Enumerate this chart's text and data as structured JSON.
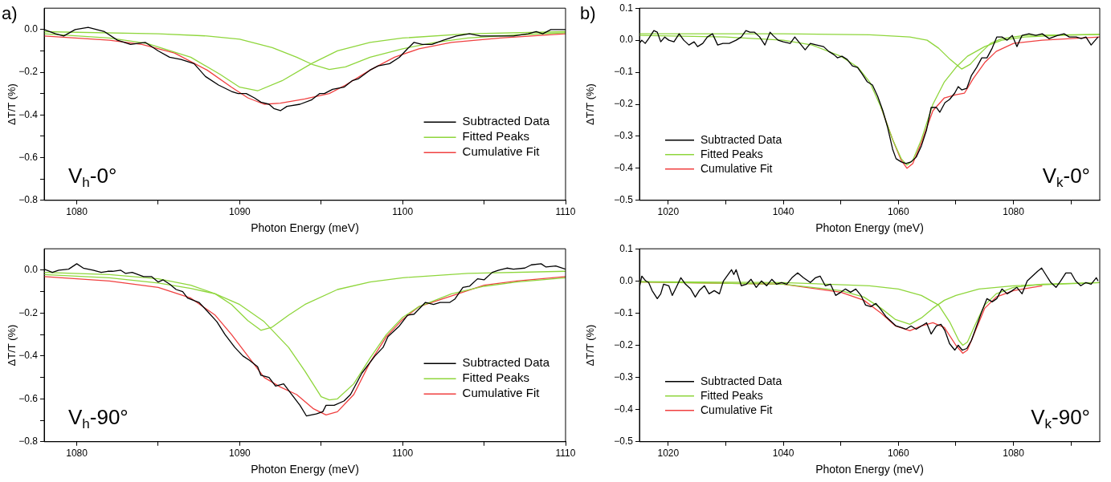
{
  "chart_data": [
    {
      "type": "line",
      "title": "a)",
      "xlabel": "Photon Energy (meV)",
      "ylabel": "ΔT/T (%)",
      "annotations": [
        "V$_{h}$-0°"
      ],
      "legend": "bottom right",
      "grid": false,
      "marker": "none",
      "line_style": "solid",
      "xlim": [
        1078,
        1110
      ],
      "xticks": [
        1080,
        {
          "value": 1085,
          "label": null
        },
        1090,
        {
          "value": 1095,
          "label": null
        },
        1100,
        {
          "value": 1105,
          "label": null
        },
        1110
      ],
      "ylim": [
        -0.8,
        0.1
      ],
      "yticks": [
        {
          "value": 0,
          "label": "0.0"
        },
        {
          "value": -0.1,
          "label": null
        },
        {
          "value": -0.2,
          "label": "−0.2"
        },
        {
          "value": -0.3,
          "label": null
        },
        {
          "value": -0.4,
          "label": "−0.4"
        },
        {
          "value": -0.5,
          "label": null
        },
        {
          "value": -0.6,
          "label": "−0.6"
        },
        {
          "value": -0.7,
          "label": null
        },
        {
          "value": -0.8,
          "label": "−0.8"
        }
      ],
      "series": [
        {
          "name": "Subtracted Data",
          "color": "#000000",
          "x": [
            1078.0,
            1078.7,
            1079.2,
            1079.9,
            1080.7,
            1081.7,
            1082.5,
            1083.3,
            1084.2,
            1085.0,
            1085.7,
            1086.4,
            1087.2,
            1087.9,
            1088.7,
            1089.5,
            1089.9,
            1090.4,
            1090.9,
            1091.3,
            1091.8,
            1092.1,
            1092.5,
            1092.9,
            1093.7,
            1094.4,
            1094.9,
            1095.2,
            1095.7,
            1096.4,
            1096.9,
            1097.3,
            1098.0,
            1098.5,
            1099.2,
            1099.8,
            1100.3,
            1100.7,
            1101.2,
            1101.8,
            1102.5,
            1103.3,
            1104.1,
            1104.8,
            1105.6,
            1106.4,
            1106.8,
            1107.7,
            1108.2,
            1108.6,
            1109.1,
            1110.0
          ],
          "values": [
            0.0,
            -0.02,
            -0.03,
            0.0,
            0.01,
            -0.01,
            -0.05,
            -0.07,
            -0.06,
            -0.1,
            -0.13,
            -0.14,
            -0.16,
            -0.22,
            -0.26,
            -0.29,
            -0.3,
            -0.3,
            -0.32,
            -0.34,
            -0.35,
            -0.37,
            -0.38,
            -0.36,
            -0.35,
            -0.33,
            -0.3,
            -0.3,
            -0.28,
            -0.27,
            -0.24,
            -0.23,
            -0.19,
            -0.17,
            -0.16,
            -0.13,
            -0.09,
            -0.06,
            -0.07,
            -0.07,
            -0.05,
            -0.03,
            -0.02,
            -0.03,
            -0.03,
            -0.03,
            -0.03,
            -0.02,
            -0.01,
            -0.02,
            0.0,
            0.0
          ]
        },
        {
          "name": "Fitted Peaks",
          "color": "#8fd63c",
          "x": [
            1078,
            1082,
            1084.3,
            1087,
            1088.8,
            1090,
            1091.1,
            1092.6,
            1094.4,
            1096,
            1098,
            1100,
            1104,
            1110
          ],
          "values": [
            -0.02,
            -0.04,
            -0.065,
            -0.13,
            -0.21,
            -0.27,
            -0.287,
            -0.24,
            -0.16,
            -0.1,
            -0.06,
            -0.04,
            -0.02,
            -0.01
          ]
        },
        {
          "color": "#8fd63c",
          "x": [
            1078,
            1085,
            1088,
            1090,
            1092,
            1093.5,
            1094.5,
            1095.5,
            1096.5,
            1098,
            1100,
            1102,
            1104,
            1107,
            1110
          ],
          "values": [
            -0.01,
            -0.02,
            -0.03,
            -0.045,
            -0.085,
            -0.13,
            -0.165,
            -0.187,
            -0.175,
            -0.13,
            -0.09,
            -0.06,
            -0.04,
            -0.025,
            -0.015
          ]
        },
        {
          "name": "Cumulative Fit",
          "color": "#f04040",
          "x": [
            1078,
            1082,
            1084,
            1086,
            1088,
            1089.5,
            1090.5,
            1091.5,
            1092.5,
            1094,
            1095.5,
            1096.5,
            1098,
            1099.5,
            1101,
            1103,
            1106,
            1110
          ],
          "values": [
            -0.03,
            -0.05,
            -0.07,
            -0.11,
            -0.19,
            -0.27,
            -0.32,
            -0.35,
            -0.345,
            -0.325,
            -0.3,
            -0.26,
            -0.19,
            -0.13,
            -0.09,
            -0.06,
            -0.04,
            -0.02
          ]
        }
      ]
    },
    {
      "type": "line",
      "title": "b)",
      "xlabel": "Photon Energy (meV)",
      "ylabel": "ΔT/T (%)",
      "annotations": [
        "V$_{k}$-0°"
      ],
      "legend": "bottom left",
      "grid": false,
      "marker": "none",
      "line_style": "solid",
      "xlim": [
        1015,
        1095
      ],
      "xticks": [
        1020,
        {
          "value": 1030,
          "label": null
        },
        1040,
        {
          "value": 1050,
          "label": null
        },
        1060,
        {
          "value": 1070,
          "label": null
        },
        1080,
        {
          "value": 1090,
          "label": null
        }
      ],
      "ylim": [
        -0.5,
        0.1
      ],
      "yticks": [
        0.1,
        {
          "value": 0,
          "label": "0.0"
        },
        {
          "value": -0.1,
          "label": "−0.1"
        },
        {
          "value": -0.2,
          "label": "−0.2"
        },
        {
          "value": -0.3,
          "label": "−0.3"
        },
        {
          "value": -0.4,
          "label": "−0.4"
        },
        {
          "value": -0.5,
          "label": "−0.5"
        }
      ],
      "series": [
        {
          "name": "Subtracted Data",
          "color": "#000000",
          "x": [
            1015.0,
            1015.4,
            1016.0,
            1016.6,
            1017.5,
            1018.1,
            1018.7,
            1019.4,
            1020.1,
            1021.0,
            1021.9,
            1022.7,
            1023.6,
            1024.5,
            1025.1,
            1026.0,
            1026.8,
            1027.7,
            1028.6,
            1029.5,
            1030.6,
            1031.8,
            1032.7,
            1033.5,
            1034.2,
            1035.0,
            1035.9,
            1036.8,
            1037.7,
            1038.2,
            1039.1,
            1040.0,
            1041.2,
            1042.0,
            1042.9,
            1043.8,
            1044.7,
            1045.8,
            1047.0,
            1047.9,
            1048.8,
            1049.4,
            1050.2,
            1051.1,
            1052.0,
            1052.9,
            1053.7,
            1054.6,
            1055.5,
            1056.4,
            1057.3,
            1058.1,
            1059.0,
            1059.6,
            1060.5,
            1061.3,
            1062.2,
            1063.1,
            1064.0,
            1064.9,
            1065.7,
            1066.6,
            1067.2,
            1068.1,
            1068.9,
            1069.8,
            1070.4,
            1071.0,
            1071.9,
            1072.7,
            1073.6,
            1074.5,
            1075.4,
            1076.3,
            1077.1,
            1078.0,
            1078.9,
            1079.8,
            1080.6,
            1081.5,
            1082.7,
            1083.9,
            1085.0,
            1086.2,
            1087.7,
            1088.8,
            1089.7,
            1090.9,
            1091.8,
            1092.6,
            1093.5,
            1094.7
          ],
          "values": [
            -0.01,
            0.0,
            -0.01,
            0.005,
            0.03,
            0.025,
            -0.005,
            0.01,
            0.0,
            -0.005,
            0.02,
            0.0,
            -0.015,
            -0.005,
            -0.02,
            -0.01,
            0.01,
            0.02,
            -0.015,
            -0.01,
            -0.01,
            0.0,
            0.01,
            0.03,
            0.025,
            0.025,
            0.01,
            -0.015,
            0.025,
            0.015,
            0.0,
            -0.005,
            -0.01,
            0.01,
            -0.01,
            -0.03,
            -0.01,
            -0.015,
            -0.02,
            -0.035,
            -0.045,
            -0.055,
            -0.05,
            -0.06,
            -0.08,
            -0.085,
            -0.105,
            -0.13,
            -0.14,
            -0.175,
            -0.22,
            -0.27,
            -0.34,
            -0.37,
            -0.38,
            -0.385,
            -0.38,
            -0.365,
            -0.33,
            -0.28,
            -0.21,
            -0.21,
            -0.225,
            -0.195,
            -0.185,
            -0.165,
            -0.145,
            -0.155,
            -0.15,
            -0.11,
            -0.085,
            -0.055,
            -0.055,
            -0.025,
            0.01,
            0.01,
            0.0,
            0.015,
            -0.02,
            0.015,
            0.02,
            0.015,
            0.02,
            0.005,
            0.015,
            0.02,
            0.01,
            0.01,
            0.005,
            0.01,
            -0.015,
            0.01
          ]
        },
        {
          "name": "Fitted Peaks",
          "color": "#8fd63c",
          "x": [
            1015,
            1030,
            1040,
            1045,
            1050,
            1053,
            1055,
            1057,
            1059,
            1060.5,
            1061.5,
            1062.5,
            1064,
            1066,
            1068,
            1070,
            1072,
            1075,
            1078,
            1082,
            1088,
            1095
          ],
          "values": [
            0.015,
            0.01,
            0.0,
            -0.015,
            -0.05,
            -0.085,
            -0.13,
            -0.21,
            -0.31,
            -0.37,
            -0.39,
            -0.375,
            -0.31,
            -0.2,
            -0.13,
            -0.085,
            -0.05,
            -0.02,
            0.0,
            0.01,
            0.015,
            0.018
          ]
        },
        {
          "color": "#8fd63c",
          "x": [
            1015,
            1040,
            1055,
            1062,
            1065,
            1067,
            1069,
            1071,
            1072.5,
            1074,
            1076,
            1078,
            1082,
            1095
          ],
          "values": [
            0.02,
            0.02,
            0.017,
            0.01,
            0.0,
            -0.025,
            -0.06,
            -0.09,
            -0.075,
            -0.045,
            -0.01,
            0.005,
            0.015,
            0.018
          ]
        },
        {
          "name": "Cumulative Fit",
          "color": "#f04040",
          "x": [
            1057,
            1059,
            1060.5,
            1061.5,
            1062.5,
            1064,
            1066,
            1068,
            1070,
            1071.5,
            1073,
            1075,
            1077,
            1080,
            1085,
            1095
          ],
          "values": [
            -0.21,
            -0.31,
            -0.375,
            -0.4,
            -0.385,
            -0.32,
            -0.22,
            -0.18,
            -0.17,
            -0.165,
            -0.12,
            -0.07,
            -0.035,
            -0.01,
            0.0,
            0.01
          ]
        }
      ]
    },
    {
      "type": "line",
      "xlabel": "Photon Energy (meV)",
      "ylabel": "ΔT/T (%)",
      "annotations": [
        "V$_{h}$-90°"
      ],
      "legend": "bottom right",
      "grid": false,
      "marker": "none",
      "line_style": "solid",
      "xlim": [
        1078,
        1110
      ],
      "xticks": [
        1080,
        {
          "value": 1085,
          "label": null
        },
        1090,
        {
          "value": 1095,
          "label": null
        },
        1100,
        {
          "value": 1105,
          "label": null
        },
        1110
      ],
      "ylim": [
        -0.8,
        0.1
      ],
      "yticks": [
        {
          "value": 0,
          "label": "0.0"
        },
        {
          "value": -0.1,
          "label": null
        },
        {
          "value": -0.2,
          "label": "−0.2"
        },
        {
          "value": -0.3,
          "label": null
        },
        {
          "value": -0.4,
          "label": "−0.4"
        },
        {
          "value": -0.5,
          "label": null
        },
        {
          "value": -0.6,
          "label": "−0.6"
        },
        {
          "value": -0.7,
          "label": null
        },
        {
          "value": -0.8,
          "label": "−0.8"
        }
      ],
      "series": [
        {
          "name": "Subtracted Data",
          "color": "#000000",
          "x": [
            1078.0,
            1078.5,
            1078.9,
            1079.5,
            1080.0,
            1080.4,
            1081.0,
            1081.5,
            1081.9,
            1082.2,
            1082.7,
            1083.0,
            1083.4,
            1084.1,
            1084.6,
            1085.0,
            1085.3,
            1085.7,
            1086.1,
            1086.5,
            1086.8,
            1087.5,
            1088.0,
            1088.6,
            1089.1,
            1089.7,
            1090.2,
            1090.6,
            1091.1,
            1091.3,
            1091.8,
            1092.2,
            1092.7,
            1093.1,
            1093.7,
            1094.1,
            1094.7,
            1095.1,
            1095.3,
            1095.8,
            1096.4,
            1096.8,
            1097.5,
            1098.3,
            1098.8,
            1099.1,
            1099.8,
            1100.3,
            1100.7,
            1101.4,
            1101.9,
            1102.3,
            1102.9,
            1103.2,
            1103.7,
            1104.1,
            1104.6,
            1105.0,
            1105.5,
            1105.9,
            1106.4,
            1106.8,
            1107.5,
            1107.9,
            1108.5,
            1108.8,
            1109.4,
            1110.0
          ],
          "values": [
            0.005,
            -0.01,
            0.0,
            0.005,
            0.03,
            0.01,
            0.0,
            -0.01,
            -0.005,
            -0.005,
            0.0,
            -0.015,
            -0.01,
            -0.03,
            -0.03,
            -0.055,
            -0.045,
            -0.065,
            -0.09,
            -0.1,
            -0.13,
            -0.15,
            -0.19,
            -0.24,
            -0.3,
            -0.36,
            -0.4,
            -0.42,
            -0.45,
            -0.49,
            -0.5,
            -0.54,
            -0.53,
            -0.57,
            -0.63,
            -0.68,
            -0.67,
            -0.66,
            -0.63,
            -0.63,
            -0.61,
            -0.58,
            -0.48,
            -0.4,
            -0.36,
            -0.31,
            -0.26,
            -0.21,
            -0.205,
            -0.15,
            -0.16,
            -0.15,
            -0.15,
            -0.135,
            -0.08,
            -0.075,
            -0.04,
            -0.045,
            -0.01,
            0.0,
            0.01,
            0.005,
            0.01,
            0.025,
            0.03,
            0.015,
            0.02,
            0.005
          ]
        },
        {
          "name": "Fitted Peaks",
          "color": "#8fd63c",
          "x": [
            1078,
            1082,
            1085,
            1087,
            1088.5,
            1089.5,
            1090.5,
            1091.3,
            1092,
            1093,
            1094,
            1096,
            1098,
            1100,
            1104,
            1110
          ],
          "values": [
            -0.01,
            -0.02,
            -0.04,
            -0.07,
            -0.11,
            -0.16,
            -0.235,
            -0.28,
            -0.265,
            -0.21,
            -0.16,
            -0.09,
            -0.055,
            -0.035,
            -0.015,
            -0.005
          ]
        },
        {
          "color": "#8fd63c",
          "x": [
            1078,
            1082,
            1085,
            1087,
            1088.5,
            1090,
            1091.5,
            1093,
            1094,
            1095,
            1095.5,
            1096,
            1097,
            1098,
            1099,
            1100,
            1101,
            1103,
            1105,
            1107,
            1110
          ],
          "values": [
            -0.02,
            -0.035,
            -0.06,
            -0.085,
            -0.11,
            -0.16,
            -0.24,
            -0.36,
            -0.47,
            -0.59,
            -0.605,
            -0.6,
            -0.53,
            -0.41,
            -0.3,
            -0.22,
            -0.17,
            -0.11,
            -0.075,
            -0.055,
            -0.035
          ]
        },
        {
          "name": "Cumulative Fit",
          "color": "#f04040",
          "x": [
            1078,
            1082,
            1085,
            1087,
            1088.5,
            1089.5,
            1090.5,
            1091.5,
            1092.5,
            1093.5,
            1094.5,
            1095.3,
            1096,
            1097,
            1098,
            1099,
            1100,
            1101,
            1103,
            1105,
            1107,
            1110
          ],
          "values": [
            -0.03,
            -0.05,
            -0.08,
            -0.13,
            -0.21,
            -0.3,
            -0.4,
            -0.5,
            -0.545,
            -0.58,
            -0.645,
            -0.675,
            -0.66,
            -0.58,
            -0.43,
            -0.31,
            -0.23,
            -0.17,
            null,
            -0.07,
            -0.05,
            -0.03
          ]
        }
      ]
    },
    {
      "type": "line",
      "xlabel": "Photon Energy (meV)",
      "ylabel": "ΔT/T (%)",
      "annotations": [
        "V$_{k}$-90°"
      ],
      "legend": "bottom left",
      "grid": false,
      "marker": "none",
      "line_style": "solid",
      "xlim": [
        1015,
        1095
      ],
      "xticks": [
        1020,
        {
          "value": 1030,
          "label": null
        },
        1040,
        {
          "value": 1050,
          "label": null
        },
        1060,
        {
          "value": 1070,
          "label": null
        },
        1080,
        {
          "value": 1090,
          "label": null
        }
      ],
      "ylim": [
        -0.5,
        0.1
      ],
      "yticks": [
        0.1,
        {
          "value": 0,
          "label": "0.0"
        },
        {
          "value": -0.1,
          "label": "−0.1"
        },
        {
          "value": -0.2,
          "label": "−0.2"
        },
        {
          "value": -0.3,
          "label": "−0.3"
        },
        {
          "value": -0.4,
          "label": "−0.4"
        },
        {
          "value": -0.5,
          "label": "−0.5"
        }
      ],
      "series": [
        {
          "name": "Subtracted Data",
          "color": "#000000",
          "x": [
            1015.0,
            1015.4,
            1016.1,
            1016.6,
            1017.2,
            1018.1,
            1018.7,
            1019.2,
            1020.1,
            1020.7,
            1021.4,
            1022.2,
            1023.0,
            1023.9,
            1024.7,
            1025.4,
            1026.3,
            1027.1,
            1028.0,
            1028.9,
            1029.6,
            1030.4,
            1031.0,
            1031.4,
            1031.8,
            1032.7,
            1033.6,
            1034.4,
            1035.3,
            1036.2,
            1037.1,
            1038.0,
            1038.8,
            1039.7,
            1040.6,
            1041.5,
            1042.5,
            1043.5,
            1044.7,
            1045.6,
            1046.4,
            1047.3,
            1048.2,
            1049.1,
            1050.0,
            1050.8,
            1051.7,
            1052.6,
            1053.5,
            1054.3,
            1055.2,
            1056.1,
            1057.0,
            1057.8,
            1058.7,
            1059.6,
            1060.5,
            1061.3,
            1062.2,
            1063.1,
            1064.0,
            1064.9,
            1065.7,
            1066.6,
            1067.4,
            1068.1,
            1068.9,
            1069.8,
            1070.4,
            1071.1,
            1071.9,
            1072.7,
            1073.6,
            1074.5,
            1075.4,
            1076.3,
            1077.1,
            1078.0,
            1078.9,
            1079.8,
            1080.6,
            1081.5,
            1082.4,
            1083.3,
            1084.2,
            1084.9,
            1085.6,
            1086.5,
            1087.4,
            1088.2,
            1089.1,
            1090.0,
            1090.8,
            1091.7,
            1092.6,
            1093.5,
            1094.4,
            1094.7
          ],
          "values": [
            -0.02,
            0.015,
            0.0,
            -0.005,
            -0.03,
            -0.055,
            -0.04,
            -0.01,
            -0.015,
            -0.045,
            -0.02,
            0.01,
            -0.01,
            -0.025,
            -0.05,
            -0.03,
            -0.015,
            -0.04,
            -0.03,
            -0.04,
            0.0,
            0.02,
            0.035,
            0.02,
            0.035,
            -0.015,
            -0.01,
            0.005,
            -0.02,
            0.0,
            -0.015,
            0.005,
            -0.01,
            -0.005,
            -0.01,
            0.01,
            0.025,
            0.01,
            -0.005,
            0.01,
            0.015,
            -0.015,
            -0.01,
            -0.045,
            -0.035,
            -0.025,
            -0.035,
            -0.025,
            -0.045,
            -0.075,
            -0.08,
            -0.07,
            -0.09,
            -0.11,
            -0.125,
            -0.14,
            -0.145,
            -0.15,
            -0.14,
            -0.15,
            -0.14,
            -0.13,
            -0.165,
            -0.14,
            -0.135,
            -0.155,
            -0.195,
            -0.215,
            -0.2,
            -0.215,
            -0.21,
            -0.185,
            -0.14,
            -0.095,
            -0.055,
            -0.065,
            -0.055,
            -0.025,
            -0.04,
            -0.03,
            -0.02,
            -0.04,
            0.0,
            0.015,
            0.03,
            0.04,
            0.02,
            -0.005,
            -0.02,
            0.0,
            0.025,
            0.025,
            0.0,
            -0.015,
            -0.005,
            -0.01,
            0.01,
            0.0
          ]
        },
        {
          "name": "Fitted Peaks",
          "color": "#8fd63c",
          "x": [
            1015,
            1040,
            1050,
            1054,
            1057,
            1059.5,
            1062,
            1064,
            1066,
            1068,
            1070,
            1074,
            1080,
            1095
          ],
          "values": [
            -0.003,
            -0.01,
            -0.03,
            -0.05,
            -0.085,
            -0.12,
            -0.135,
            -0.115,
            -0.085,
            -0.06,
            -0.045,
            -0.025,
            -0.015,
            -0.005
          ]
        },
        {
          "color": "#8fd63c",
          "x": [
            1015,
            1040,
            1055,
            1060,
            1064,
            1067,
            1069,
            1070.5,
            1071.2,
            1072,
            1073.5,
            1075,
            1077,
            1080,
            1085,
            1095
          ],
          "values": [
            -0.002,
            -0.005,
            -0.015,
            -0.025,
            -0.045,
            -0.075,
            -0.13,
            -0.185,
            -0.2,
            -0.19,
            -0.13,
            -0.075,
            -0.04,
            -0.02,
            -0.01,
            -0.005
          ]
        },
        {
          "name": "Cumulative Fit",
          "color": "#f04040",
          "x": [
            1015,
            1040,
            1050,
            1054,
            1057,
            1059.5,
            1062,
            1064,
            1066,
            1068,
            1070,
            1071.2,
            1072,
            1073.5,
            1075,
            1077,
            1080,
            1085
          ],
          "values": [
            -0.003,
            -0.01,
            -0.035,
            -0.06,
            -0.1,
            -0.14,
            -0.155,
            -0.14,
            -0.13,
            -0.145,
            -0.2,
            -0.225,
            -0.215,
            -0.15,
            -0.085,
            -0.05,
            -0.03,
            -0.015
          ]
        }
      ]
    }
  ]
}
